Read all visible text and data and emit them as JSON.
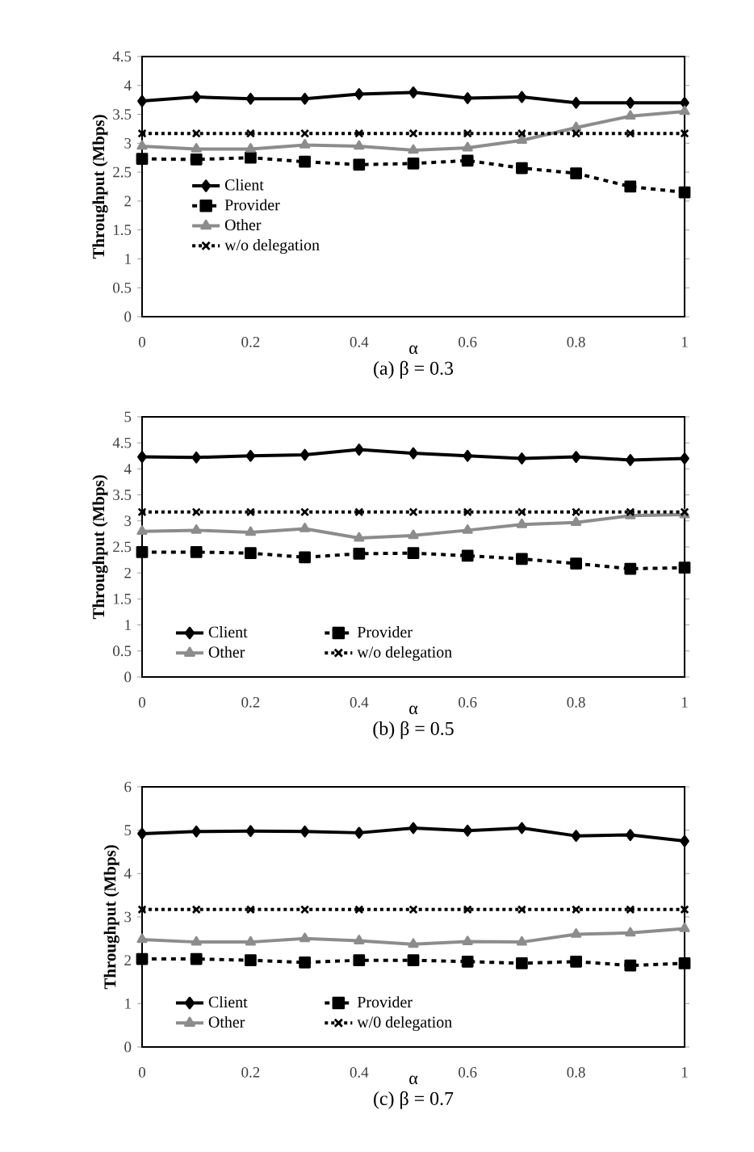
{
  "chart_data": [
    {
      "type": "line",
      "title": "(a) β = 0.3",
      "xlabel": "α",
      "ylabel": "Throughput (Mbps)",
      "x": [
        0,
        0.1,
        0.2,
        0.3,
        0.4,
        0.5,
        0.6,
        0.7,
        0.8,
        0.9,
        1
      ],
      "xlim": [
        0,
        1
      ],
      "xticks": [
        0,
        0.2,
        0.4,
        0.6,
        0.8,
        1
      ],
      "ylim": [
        0,
        4.5
      ],
      "yticks": [
        0,
        0.5,
        1,
        1.5,
        2,
        2.5,
        3,
        3.5,
        4,
        4.5
      ],
      "legend": "bottom left",
      "grid": false,
      "series": [
        {
          "name": "Client",
          "color": "#000000",
          "marker": "diamond",
          "line_style": "solid",
          "values": [
            3.73,
            3.8,
            3.77,
            3.77,
            3.85,
            3.88,
            3.78,
            3.8,
            3.7,
            3.7,
            3.7
          ]
        },
        {
          "name": "Provider",
          "color": "#000000",
          "marker": "square",
          "line_style": "dashed",
          "values": [
            2.73,
            2.72,
            2.75,
            2.68,
            2.63,
            2.65,
            2.7,
            2.57,
            2.48,
            2.25,
            2.15
          ]
        },
        {
          "name": "Other",
          "color": "#8c8c8c",
          "marker": "triangle",
          "line_style": "solid",
          "values": [
            2.95,
            2.9,
            2.9,
            2.97,
            2.95,
            2.88,
            2.92,
            3.05,
            3.27,
            3.47,
            3.55
          ]
        },
        {
          "name": "w/o delegation",
          "color": "#000000",
          "marker": "cross",
          "line_style": "dotted",
          "values": [
            3.17,
            3.17,
            3.17,
            3.17,
            3.17,
            3.17,
            3.17,
            3.17,
            3.17,
            3.17,
            3.17
          ]
        }
      ]
    },
    {
      "type": "line",
      "title": "(b) β = 0.5",
      "xlabel": "α",
      "ylabel": "Throughput (Mbps)",
      "x": [
        0,
        0.1,
        0.2,
        0.3,
        0.4,
        0.5,
        0.6,
        0.7,
        0.8,
        0.9,
        1
      ],
      "xlim": [
        0,
        1
      ],
      "xticks": [
        0,
        0.2,
        0.4,
        0.6,
        0.8,
        1
      ],
      "ylim": [
        0,
        5
      ],
      "yticks": [
        0,
        0.5,
        1,
        1.5,
        2,
        2.5,
        3,
        3.5,
        4,
        4.5,
        5
      ],
      "legend": "bottom",
      "grid": false,
      "series": [
        {
          "name": "Client",
          "color": "#000000",
          "marker": "diamond",
          "line_style": "solid",
          "values": [
            4.23,
            4.22,
            4.25,
            4.27,
            4.37,
            4.3,
            4.25,
            4.2,
            4.23,
            4.17,
            4.2
          ]
        },
        {
          "name": "Provider",
          "color": "#000000",
          "marker": "square",
          "line_style": "dashed",
          "values": [
            2.4,
            2.4,
            2.38,
            2.3,
            2.37,
            2.38,
            2.33,
            2.27,
            2.18,
            2.08,
            2.1
          ]
        },
        {
          "name": "Other",
          "color": "#8c8c8c",
          "marker": "triangle",
          "line_style": "solid",
          "values": [
            2.8,
            2.82,
            2.78,
            2.85,
            2.67,
            2.72,
            2.82,
            2.93,
            2.97,
            3.1,
            3.12
          ]
        },
        {
          "name": "w/o delegation",
          "color": "#000000",
          "marker": "cross",
          "line_style": "dotted",
          "values": [
            3.17,
            3.17,
            3.17,
            3.17,
            3.17,
            3.17,
            3.17,
            3.17,
            3.17,
            3.17,
            3.17
          ]
        }
      ]
    },
    {
      "type": "line",
      "title": "(c) β = 0.7",
      "xlabel": "α",
      "ylabel": "Throughput (Mbps)",
      "x": [
        0,
        0.1,
        0.2,
        0.3,
        0.4,
        0.5,
        0.6,
        0.7,
        0.8,
        0.9,
        1
      ],
      "xlim": [
        0,
        1
      ],
      "xticks": [
        0,
        0.2,
        0.4,
        0.6,
        0.8,
        1
      ],
      "ylim": [
        0,
        6
      ],
      "yticks": [
        0,
        1,
        2,
        3,
        4,
        5,
        6
      ],
      "legend": "bottom",
      "grid": false,
      "series": [
        {
          "name": "Client",
          "color": "#000000",
          "marker": "diamond",
          "line_style": "solid",
          "values": [
            4.92,
            4.97,
            4.98,
            4.97,
            4.94,
            5.05,
            4.99,
            5.05,
            4.87,
            4.89,
            4.75
          ]
        },
        {
          "name": "Provider",
          "color": "#000000",
          "marker": "square",
          "line_style": "dashed",
          "values": [
            2.03,
            2.03,
            2.0,
            1.95,
            2.0,
            2.0,
            1.97,
            1.93,
            1.97,
            1.88,
            1.93
          ]
        },
        {
          "name": "Other",
          "color": "#8c8c8c",
          "marker": "triangle",
          "line_style": "solid",
          "values": [
            2.48,
            2.42,
            2.42,
            2.5,
            2.45,
            2.37,
            2.43,
            2.42,
            2.6,
            2.63,
            2.73
          ]
        },
        {
          "name": "w/0 delegation",
          "color": "#000000",
          "marker": "cross",
          "line_style": "dotted",
          "values": [
            3.17,
            3.17,
            3.17,
            3.17,
            3.17,
            3.17,
            3.17,
            3.17,
            3.17,
            3.17,
            3.17
          ]
        }
      ]
    }
  ]
}
